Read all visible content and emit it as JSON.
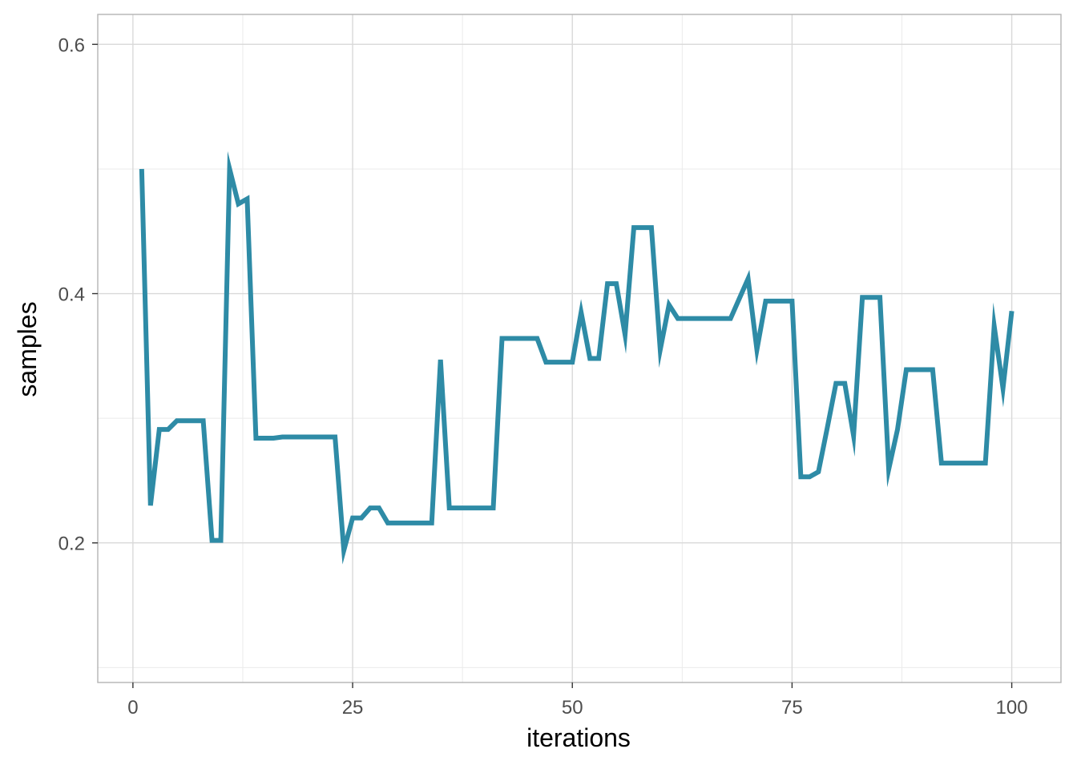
{
  "chart_data": {
    "type": "line",
    "title": "",
    "xlabel": "iterations",
    "ylabel": "samples",
    "xlim": [
      -4,
      105.6
    ],
    "ylim": [
      0.088,
      0.624
    ],
    "x_ticks": [
      0,
      25,
      50,
      75,
      100
    ],
    "x_tick_labels": [
      "0",
      "25",
      "50",
      "75",
      "100"
    ],
    "x_minor_ticks": [
      12.5,
      37.5,
      62.5,
      87.5
    ],
    "y_ticks": [
      0.2,
      0.4,
      0.6
    ],
    "y_tick_labels": [
      "0.2",
      "0.4",
      "0.6"
    ],
    "y_minor_ticks": [
      0.1,
      0.3,
      0.5
    ],
    "grid": true,
    "line_color": "#2e8ba6",
    "series": [
      {
        "x": [
          1,
          2,
          3,
          4,
          5,
          6,
          7,
          8,
          9,
          10,
          11,
          12,
          13,
          14,
          15,
          16,
          17,
          18,
          19,
          20,
          21,
          22,
          23,
          24,
          25,
          26,
          27,
          28,
          29,
          30,
          31,
          32,
          33,
          34,
          35,
          36,
          37,
          38,
          39,
          40,
          41,
          42,
          43,
          44,
          45,
          46,
          47,
          48,
          49,
          50,
          51,
          52,
          53,
          54,
          55,
          56,
          57,
          58,
          59,
          60,
          61,
          62,
          63,
          64,
          65,
          66,
          67,
          68,
          69,
          70,
          71,
          72,
          73,
          74,
          75,
          76,
          77,
          78,
          79,
          80,
          81,
          82,
          83,
          84,
          85,
          86,
          87,
          88,
          89,
          90,
          91,
          92,
          93,
          94,
          95,
          96,
          97,
          98,
          99,
          100
        ],
        "y": [
          0.5,
          0.23,
          0.291,
          0.291,
          0.298,
          0.298,
          0.298,
          0.298,
          0.202,
          0.202,
          0.5,
          0.472,
          0.476,
          0.284,
          0.284,
          0.284,
          0.285,
          0.285,
          0.285,
          0.285,
          0.285,
          0.285,
          0.285,
          0.194,
          0.22,
          0.22,
          0.228,
          0.228,
          0.216,
          0.216,
          0.216,
          0.216,
          0.216,
          0.216,
          0.347,
          0.228,
          0.228,
          0.228,
          0.228,
          0.228,
          0.228,
          0.364,
          0.364,
          0.364,
          0.364,
          0.364,
          0.345,
          0.345,
          0.345,
          0.345,
          0.385,
          0.348,
          0.348,
          0.408,
          0.408,
          0.367,
          0.453,
          0.453,
          0.453,
          0.355,
          0.391,
          0.38,
          0.38,
          0.38,
          0.38,
          0.38,
          0.38,
          0.38,
          0.396,
          0.412,
          0.355,
          0.394,
          0.394,
          0.394,
          0.394,
          0.253,
          0.253,
          0.257,
          0.292,
          0.328,
          0.328,
          0.286,
          0.397,
          0.397,
          0.397,
          0.259,
          0.291,
          0.339,
          0.339,
          0.339,
          0.339,
          0.264,
          0.264,
          0.264,
          0.264,
          0.264,
          0.264,
          0.374,
          0.324,
          0.386
        ]
      }
    ]
  }
}
